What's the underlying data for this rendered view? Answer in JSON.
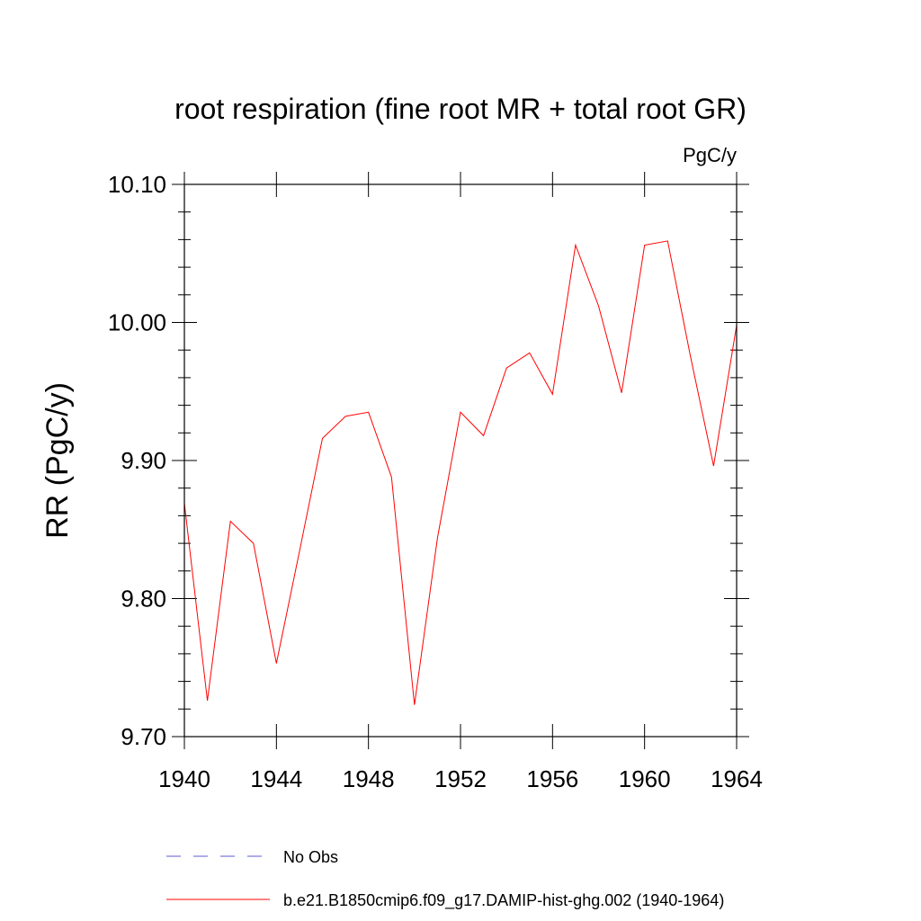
{
  "chart_data": {
    "type": "line",
    "title": "root respiration (fine root MR + total root GR)",
    "units_label": "PgC/y",
    "ylabel": "RR  (PgC/y)",
    "xlabel": "",
    "xlim": [
      1940,
      1964
    ],
    "ylim": [
      9.7,
      10.1
    ],
    "x_ticks": [
      "1940",
      "1944",
      "1948",
      "1952",
      "1956",
      "1960",
      "1964"
    ],
    "y_ticks": [
      "9.70",
      "9.80",
      "9.90",
      "10.00",
      "10.10"
    ],
    "series": [
      {
        "name": "b.e21.B1850cmip6.f09_g17.DAMIP-hist-ghg.002 (1940-1964)",
        "color": "#ff0000",
        "x": [
          1940,
          1941,
          1942,
          1943,
          1944,
          1945,
          1946,
          1947,
          1948,
          1949,
          1950,
          1951,
          1952,
          1953,
          1954,
          1955,
          1956,
          1957,
          1958,
          1959,
          1960,
          1961,
          1962,
          1963,
          1964
        ],
        "y": [
          9.869,
          9.726,
          9.856,
          9.84,
          9.753,
          9.834,
          9.916,
          9.932,
          9.935,
          9.888,
          9.723,
          9.844,
          9.935,
          9.918,
          9.967,
          9.978,
          9.948,
          10.056,
          10.012,
          9.949,
          10.056,
          10.059,
          9.975,
          9.896,
          9.998
        ]
      }
    ],
    "legend": [
      {
        "label": "No Obs",
        "color": "#5b5bd6",
        "style": "dashed"
      },
      {
        "label": "b.e21.B1850cmip6.f09_g17.DAMIP-hist-ghg.002 (1940-1964)",
        "color": "#ff0000",
        "style": "solid"
      }
    ],
    "legend_position": "bottom"
  }
}
